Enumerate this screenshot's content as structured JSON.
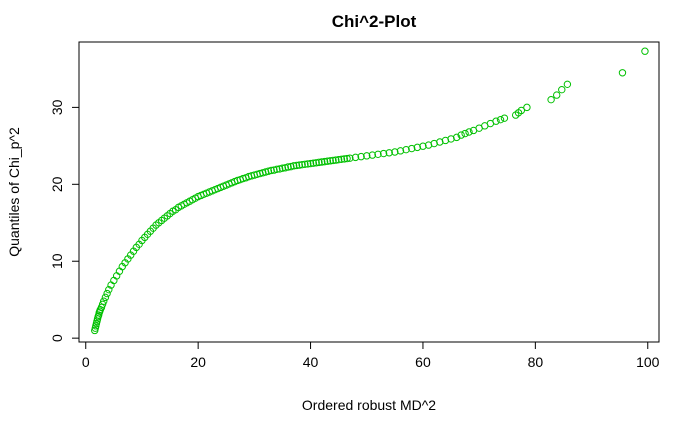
{
  "chart_data": {
    "type": "scatter",
    "title": "Chi^2-Plot",
    "xlabel": "Ordered robust MD^2",
    "ylabel": "Quantiles of Chi_p^2",
    "xlim": [
      -1.2,
      102
    ],
    "ylim": [
      -0.5,
      38.5
    ],
    "x_ticks": [
      0,
      20,
      40,
      60,
      80,
      100
    ],
    "y_ticks": [
      0,
      10,
      20,
      30
    ],
    "grid": false,
    "legend": "none",
    "marker": "open-circle",
    "color": "#00c000",
    "series": [
      {
        "x": [
          1.6,
          1.7,
          1.8,
          1.9,
          2.0,
          2.1,
          2.2,
          2.3,
          2.4,
          2.5,
          2.6,
          2.8,
          3.0,
          3.2,
          3.5,
          3.8,
          4.1,
          4.5,
          5.0,
          5.5,
          6.0,
          6.5,
          7.0,
          7.5,
          8.0,
          8.5,
          9.0,
          9.5,
          10.0,
          10.5,
          11.0,
          11.5,
          12.0,
          12.5,
          13.0,
          13.5,
          14.0,
          14.5,
          15.0,
          15.5,
          16.0,
          16.5,
          17.0,
          17.5,
          18.0,
          18.5,
          19.0,
          19.5,
          20.0,
          20.5,
          21.0,
          21.5,
          22.0,
          22.5,
          23.0,
          23.5,
          24.0,
          24.5,
          25.0,
          25.5,
          26.0,
          26.5,
          27.0,
          27.5,
          28.0,
          28.5,
          29.0,
          29.5,
          30.0,
          30.5,
          31.0,
          31.5,
          32.0,
          32.5,
          33.0,
          33.5,
          34.0,
          34.5,
          35.0,
          35.5,
          36.0,
          36.5,
          37.0,
          37.5,
          38.0,
          38.5,
          39.0,
          39.5,
          40.0,
          40.5,
          41.0,
          41.5,
          42.0,
          42.5,
          43.0,
          43.5,
          44.0,
          44.5,
          45.0,
          45.5,
          46.0,
          46.5,
          47.0,
          48.0,
          49.0,
          50.0,
          51.0,
          52.0,
          53.0,
          54.0,
          55.0,
          56.0,
          57.0,
          58.0,
          59.0,
          60.0,
          61.0,
          62.0,
          63.0,
          64.0,
          65.0,
          66.0,
          66.8,
          67.5,
          68.2,
          69.0,
          70.0,
          71.0,
          72.0,
          73.0,
          73.8,
          74.5,
          76.5,
          77.0,
          77.5,
          78.5,
          82.8,
          83.8,
          84.7,
          85.7,
          95.5,
          99.5
        ],
        "y": [
          1.0,
          1.3,
          1.6,
          1.9,
          2.2,
          2.5,
          2.8,
          3.0,
          3.3,
          3.5,
          3.7,
          4.0,
          4.4,
          4.8,
          5.3,
          5.8,
          6.3,
          6.9,
          7.5,
          8.1,
          8.7,
          9.3,
          9.8,
          10.3,
          10.8,
          11.3,
          11.8,
          12.2,
          12.7,
          13.1,
          13.5,
          13.9,
          14.3,
          14.7,
          15.0,
          15.3,
          15.6,
          15.9,
          16.2,
          16.5,
          16.7,
          17.0,
          17.2,
          17.4,
          17.6,
          17.8,
          18.0,
          18.2,
          18.4,
          18.55,
          18.7,
          18.85,
          19.0,
          19.15,
          19.3,
          19.45,
          19.6,
          19.75,
          19.9,
          20.05,
          20.2,
          20.35,
          20.5,
          20.6,
          20.75,
          20.85,
          21.0,
          21.1,
          21.2,
          21.3,
          21.4,
          21.5,
          21.6,
          21.7,
          21.8,
          21.85,
          21.95,
          22.0,
          22.1,
          22.15,
          22.25,
          22.3,
          22.4,
          22.45,
          22.5,
          22.55,
          22.6,
          22.65,
          22.7,
          22.75,
          22.8,
          22.85,
          22.9,
          22.95,
          23.0,
          23.05,
          23.1,
          23.15,
          23.2,
          23.25,
          23.3,
          23.35,
          23.4,
          23.5,
          23.6,
          23.7,
          23.8,
          23.9,
          24.0,
          24.1,
          24.2,
          24.35,
          24.5,
          24.65,
          24.8,
          24.95,
          25.1,
          25.3,
          25.5,
          25.7,
          25.9,
          26.1,
          26.4,
          26.6,
          26.8,
          27.0,
          27.3,
          27.6,
          27.9,
          28.2,
          28.4,
          28.6,
          29.0,
          29.3,
          29.6,
          30.0,
          31.0,
          31.6,
          32.3,
          33.0,
          34.5,
          37.3
        ]
      }
    ]
  }
}
